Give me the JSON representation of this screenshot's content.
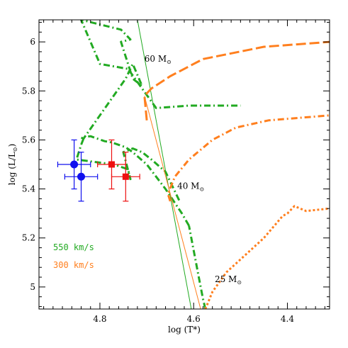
{
  "chart_data": {
    "type": "line",
    "xlabel": "log (T*)",
    "ylabel": "log (L/L",
    "ylabel_sub": "⊙",
    "ylabel_close": ")",
    "xlim": [
      4.93,
      4.31
    ],
    "ylim": [
      4.91,
      6.09
    ],
    "x_inverted": true,
    "x_ticks": [
      4.8,
      4.6,
      4.4
    ],
    "x_tick_labels": [
      "4.8",
      "4.6",
      "4.4"
    ],
    "y_ticks": [
      5.0,
      5.2,
      5.4,
      5.6,
      5.8,
      6.0
    ],
    "y_tick_labels": [
      "5",
      "5.2",
      "5.4",
      "5.6",
      "5.8",
      "6"
    ],
    "grid": false,
    "legend": [
      {
        "label": "550 km/s",
        "color": "#22aa22"
      },
      {
        "label": "300 km/s",
        "color": "#ff7f1e"
      }
    ],
    "annotations": [
      {
        "text": "60 M",
        "sub": "⊙",
        "x": 4.705,
        "y": 5.92
      },
      {
        "text": "40 M",
        "sub": "⊙",
        "x": 4.635,
        "y": 5.4
      },
      {
        "text": "25 M",
        "sub": "⊙",
        "x": 4.555,
        "y": 5.02
      }
    ],
    "series": [
      {
        "color": "#22aa22",
        "style": "dashdot",
        "width": 3,
        "x": [
          4.61,
          4.625,
          4.66,
          4.7,
          4.73,
          4.745,
          4.76,
          4.775,
          4.79,
          4.805,
          4.82,
          4.84,
          4.835,
          4.745,
          4.73,
          4.71,
          4.73,
          4.755,
          4.735,
          4.755,
          4.84,
          4.8,
          4.74,
          4.68,
          4.61,
          4.5
        ],
        "y": [
          5.25,
          5.3,
          5.4,
          5.5,
          5.55,
          5.57,
          5.58,
          5.59,
          5.595,
          5.605,
          5.615,
          5.61,
          5.605,
          5.85,
          5.91,
          5.82,
          5.85,
          6.0,
          6.01,
          6.05,
          6.09,
          5.91,
          5.89,
          5.73,
          5.74,
          5.74
        ]
      },
      {
        "color": "#22aa22",
        "style": "dashdot",
        "width": 3,
        "x": [
          4.835,
          4.84,
          4.85,
          4.77,
          4.74,
          4.735,
          4.75,
          4.73,
          4.71,
          4.69,
          4.66,
          4.63
        ],
        "y": [
          5.605,
          5.58,
          5.52,
          5.5,
          5.48,
          5.44,
          5.55,
          5.565,
          5.55,
          5.52,
          5.47,
          5.35
        ]
      },
      {
        "color": "#22aa22",
        "style": "solid",
        "width": 1,
        "x": [
          4.605,
          4.72
        ],
        "y": [
          4.91,
          6.09
        ]
      },
      {
        "color": "#22aa22",
        "style": "dashdot",
        "width": 3,
        "x": [
          4.575,
          4.58,
          4.59,
          4.6,
          4.61
        ],
        "y": [
          4.91,
          4.95,
          5.05,
          5.15,
          5.25
        ]
      },
      {
        "color": "#ff7f1e",
        "style": "dashed",
        "width": 3,
        "x": [
          4.7,
          4.705,
          4.69,
          4.65,
          4.58,
          4.45,
          4.38,
          4.31
        ],
        "y": [
          5.68,
          5.78,
          5.81,
          5.86,
          5.93,
          5.98,
          5.99,
          6.0
        ]
      },
      {
        "color": "#ff7f1e",
        "style": "dashdot",
        "width": 3,
        "x": [
          4.65,
          4.655,
          4.64,
          4.61,
          4.56,
          4.51,
          4.44,
          4.31
        ],
        "y": [
          5.35,
          5.38,
          5.45,
          5.52,
          5.6,
          5.65,
          5.68,
          5.7
        ]
      },
      {
        "color": "#ff7f1e",
        "style": "dotted",
        "width": 3,
        "x": [
          4.575,
          4.56,
          4.53,
          4.49,
          4.45,
          4.41,
          4.4,
          4.385,
          4.36,
          4.31
        ],
        "y": [
          4.91,
          4.98,
          5.06,
          5.13,
          5.2,
          5.29,
          5.3,
          5.33,
          5.31,
          5.32
        ]
      },
      {
        "color": "#ff7f1e",
        "style": "solid",
        "width": 1,
        "x": [
          4.705,
          4.585
        ],
        "y": [
          5.78,
          4.91
        ]
      }
    ],
    "points": [
      {
        "x": 4.855,
        "y": 5.5,
        "xerr": 0.035,
        "yerr": 0.1,
        "color": "#1010ee",
        "marker": "circle"
      },
      {
        "x": 4.84,
        "y": 5.45,
        "xerr": 0.035,
        "yerr": 0.1,
        "color": "#1010ee",
        "marker": "circle"
      },
      {
        "x": 4.775,
        "y": 5.5,
        "xerr": 0.03,
        "yerr": 0.1,
        "color": "#ee1010",
        "marker": "square"
      },
      {
        "x": 4.745,
        "y": 5.45,
        "xerr": 0.03,
        "yerr": 0.1,
        "color": "#ee1010",
        "marker": "square"
      }
    ]
  }
}
